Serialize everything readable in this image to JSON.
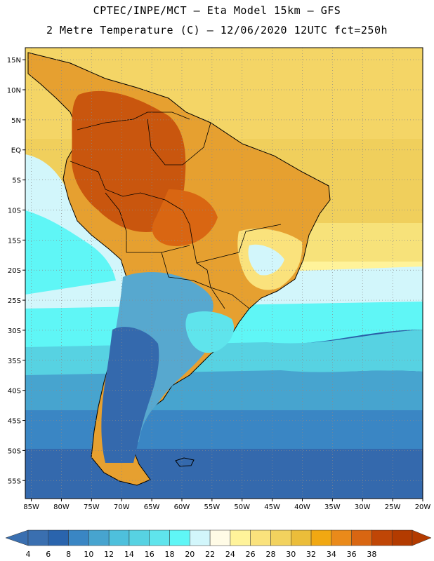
{
  "header": {
    "line1": "CPTEC/INPE/MCT –  Eta Model 15km – GFS",
    "line2": "2 Metre Temperature (C) – 12/06/2020 12UTC fct=250h"
  },
  "map": {
    "lat_range": [
      -58,
      17
    ],
    "lon_range": [
      -86,
      -20
    ],
    "lat_labels": [
      "15N",
      "10N",
      "5N",
      "EQ",
      "5S",
      "10S",
      "15S",
      "20S",
      "25S",
      "30S",
      "35S",
      "40S",
      "45S",
      "50S",
      "55S"
    ],
    "lat_values": [
      15,
      10,
      5,
      0,
      -5,
      -10,
      -15,
      -20,
      -25,
      -30,
      -35,
      -40,
      -45,
      -50,
      -55
    ],
    "lon_labels": [
      "85W",
      "80W",
      "75W",
      "70W",
      "65W",
      "60W",
      "55W",
      "50W",
      "45W",
      "40W",
      "35W",
      "30W",
      "25W",
      "20W"
    ],
    "lon_values": [
      -85,
      -80,
      -75,
      -70,
      -65,
      -60,
      -55,
      -50,
      -45,
      -40,
      -35,
      -30,
      -25,
      -20
    ]
  },
  "colorbar": {
    "labels": [
      "4",
      "6",
      "8",
      "10",
      "12",
      "14",
      "16",
      "18",
      "20",
      "22",
      "24",
      "26",
      "28",
      "30",
      "32",
      "34",
      "36",
      "38"
    ],
    "colors": [
      "#3a6fb0",
      "#2a64ad",
      "#3a86c4",
      "#47a4cf",
      "#4ec0dc",
      "#57d2e2",
      "#5fe4ec",
      "#5ff6f6",
      "#d2f6fb",
      "#fffbe6",
      "#fff39a",
      "#fae27c",
      "#f2d25e",
      "#ebbd3a",
      "#f1a812",
      "#ea8a1a",
      "#d96612",
      "#c04606",
      "#b33b00"
    ]
  }
}
